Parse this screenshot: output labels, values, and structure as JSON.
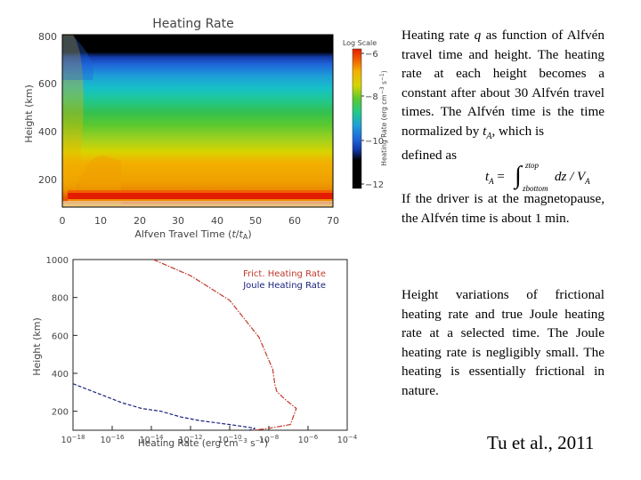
{
  "top_figure": {
    "title": "Heating Rate",
    "xlabel_main": "Alfven Travel Time (",
    "xlabel_var": "t",
    "xlabel_slash": "/",
    "xlabel_sub_var": "t",
    "xlabel_sub": "A",
    "xlabel_close": ")",
    "ylabel": "Height (km)",
    "x_ticks": [
      "0",
      "10",
      "20",
      "30",
      "40",
      "50",
      "60",
      "70"
    ],
    "y_ticks": [
      "200",
      "400",
      "600",
      "800"
    ],
    "colorbar_title": "Log Scale",
    "colorbar_ticks": [
      "−6",
      "−8",
      "−10",
      "−12"
    ],
    "colorbar_label": "Heating Rate (erg cm",
    "colorbar_label_exp1": "−3",
    "colorbar_label_mid": " s",
    "colorbar_label_exp2": "−1",
    "colorbar_label_end": ")"
  },
  "bottom_figure": {
    "xlabel": "Heating Rate (erg cm",
    "xlabel_exp1": "−3",
    "xlabel_mid": " s",
    "xlabel_exp2": "−1",
    "xlabel_end": ")",
    "ylabel": "Height (km)",
    "y_ticks": [
      "1000",
      "800",
      "600",
      "400",
      "200"
    ],
    "x_tick_base": "10",
    "x_tick_exps": [
      "−18",
      "−16",
      "−14",
      "−12",
      "−10",
      "−8",
      "−6",
      "−4"
    ],
    "legend": [
      {
        "label": "Frict. Heating Rate",
        "color": "#c0392b"
      },
      {
        "label": "Joule Heating Rate",
        "color": "#1a237e"
      }
    ]
  },
  "chart_data": [
    {
      "type": "heatmap",
      "title": "Heating Rate",
      "xlabel": "Alfven Travel Time (t/tA)",
      "ylabel": "Height (km)",
      "xlim": [
        0,
        70
      ],
      "ylim": [
        80,
        800
      ],
      "colorbar": {
        "title": "Log Scale",
        "range": [
          -12.5,
          -5.5
        ],
        "ticks": [
          -6,
          -8,
          -10,
          -12
        ]
      }
    },
    {
      "type": "line",
      "xlabel": "Heating Rate (erg cm−3 s−1)",
      "ylabel": "Height (km)",
      "log_x": true,
      "xlim": [
        -18,
        -4
      ],
      "ylim": [
        100,
        1000
      ],
      "series": [
        {
          "name": "Frict. Heating Rate",
          "x": [
            -13.9,
            -12,
            -10,
            -8.5,
            -7.8,
            -7.7,
            -7.6,
            -7.2,
            -6.6,
            -6.9,
            -8.0,
            -8.8
          ],
          "y": [
            1000,
            915,
            785,
            590,
            420,
            345,
            305,
            265,
            215,
            130,
            110,
            100
          ]
        },
        {
          "name": "Joule Heating Rate",
          "x": [
            -18,
            -17.5,
            -16.5,
            -15.5,
            -14.5,
            -13.5,
            -13.0,
            -12.5,
            -11.5,
            -10,
            -9,
            -8.7,
            -9.0
          ],
          "y": [
            345,
            325,
            285,
            245,
            215,
            200,
            185,
            170,
            150,
            130,
            115,
            110,
            100
          ]
        }
      ]
    }
  ],
  "text": {
    "para1_a": "Heating rate ",
    "para1_q": "q",
    "para1_b": " as function of Alfvén travel time and height. The heating rate at each height becomes a constant after about 30 Alfvén travel times. The Alfvén time is the time normalized by ",
    "para1_tA_var": "t",
    "para1_tA_sub": "A",
    "para1_c": ", which is",
    "para1_d": "defined as",
    "formula_lhs_var": "t",
    "formula_lhs_sub": "A",
    "formula_eq": " = ",
    "formula_int": "∫",
    "formula_upper": "ztop",
    "formula_lower": "zbottom",
    "formula_integrand": "dz / V",
    "formula_integrand_sub": "A",
    "para2": "If the driver is at the magnetopause, the Alfvén time is about 1 min.",
    "para3": "Height variations of frictional heating rate and true Joule heating rate at a selected time. The Joule heating rate is negligibly small. The heating is essentially frictional in nature.",
    "credit": "Tu et al., 2011"
  }
}
